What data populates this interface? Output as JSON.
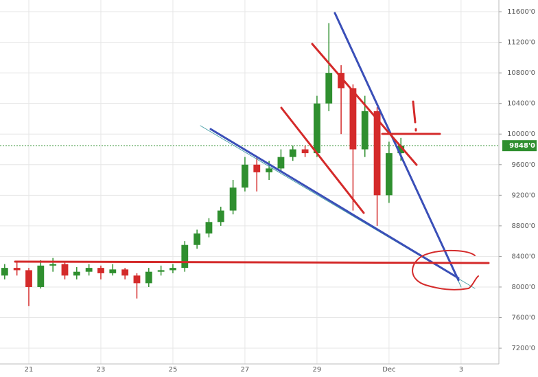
{
  "chart_data": {
    "type": "candlestick",
    "x": [
      20.33,
      20.67,
      21,
      21.33,
      21.67,
      22,
      22.33,
      22.67,
      23,
      23.33,
      23.67,
      24,
      24.33,
      24.67,
      25,
      25.33,
      25.67,
      26,
      26.33,
      26.67,
      27,
      27.33,
      27.67,
      28,
      28.33,
      28.67,
      29,
      29.33,
      29.67,
      30,
      30.33,
      30.67,
      31,
      31.33
    ],
    "open": [
      8150,
      8250,
      8220,
      8000,
      8280,
      8300,
      8150,
      8200,
      8250,
      8180,
      8230,
      8150,
      8050,
      8200,
      8220,
      8250,
      8550,
      8700,
      8850,
      9000,
      9300,
      9600,
      9500,
      9550,
      9700,
      9800,
      9750,
      10400,
      10800,
      10600,
      9800,
      10300,
      9200,
      9750
    ],
    "high": [
      8300,
      8320,
      8250,
      8350,
      8380,
      8320,
      8260,
      8300,
      8280,
      8300,
      8250,
      8180,
      8250,
      8280,
      8300,
      8600,
      8750,
      8900,
      9050,
      9400,
      9700,
      9700,
      9650,
      9800,
      9850,
      9850,
      10500,
      11450,
      10900,
      10650,
      10500,
      10350,
      9900,
      9950
    ],
    "low": [
      8100,
      8150,
      7750,
      7980,
      8200,
      8100,
      8100,
      8150,
      8100,
      8150,
      8100,
      7850,
      8000,
      8150,
      8180,
      8200,
      8500,
      8650,
      8800,
      8950,
      9250,
      9250,
      9400,
      9500,
      9650,
      9700,
      9700,
      10300,
      10000,
      9000,
      9700,
      8800,
      9100,
      9650
    ],
    "close": [
      8250,
      8220,
      8000,
      8280,
      8300,
      8150,
      8200,
      8250,
      8180,
      8230,
      8150,
      8050,
      8200,
      8220,
      8250,
      8550,
      8700,
      8850,
      9000,
      9300,
      9600,
      9500,
      9550,
      9700,
      9800,
      9750,
      10400,
      10800,
      10600,
      9800,
      10300,
      9200,
      9750,
      9848
    ],
    "up_color": "#2f8f2f",
    "down_color": "#d42a2a",
    "xlim": [
      20.2,
      34.05
    ],
    "xticks": [
      21,
      23,
      25,
      27,
      29,
      {
        "value": 31,
        "label": "Dec"
      },
      {
        "value": 33,
        "label": "3"
      }
    ],
    "ylim": [
      6994,
      11753
    ],
    "yticks": [
      {
        "value": 7200,
        "label": "7200'0"
      },
      {
        "value": 7600,
        "label": "7600'0"
      },
      {
        "value": 8000,
        "label": "8000'0"
      },
      {
        "value": 8400,
        "label": "8400'0"
      },
      {
        "value": 8800,
        "label": "8800'0"
      },
      {
        "value": 9200,
        "label": "9200'0"
      },
      {
        "value": 9600,
        "label": "9600'0"
      },
      {
        "value": 10000,
        "label": "10000'0"
      },
      {
        "value": 10400,
        "label": "10400'0"
      },
      {
        "value": 10800,
        "label": "10800'0"
      },
      {
        "value": 11200,
        "label": "11200'0"
      },
      {
        "value": 11600,
        "label": "11600'0"
      }
    ],
    "last_price": {
      "value": 9848,
      "label": "9848'0"
    },
    "grid": true
  }
}
